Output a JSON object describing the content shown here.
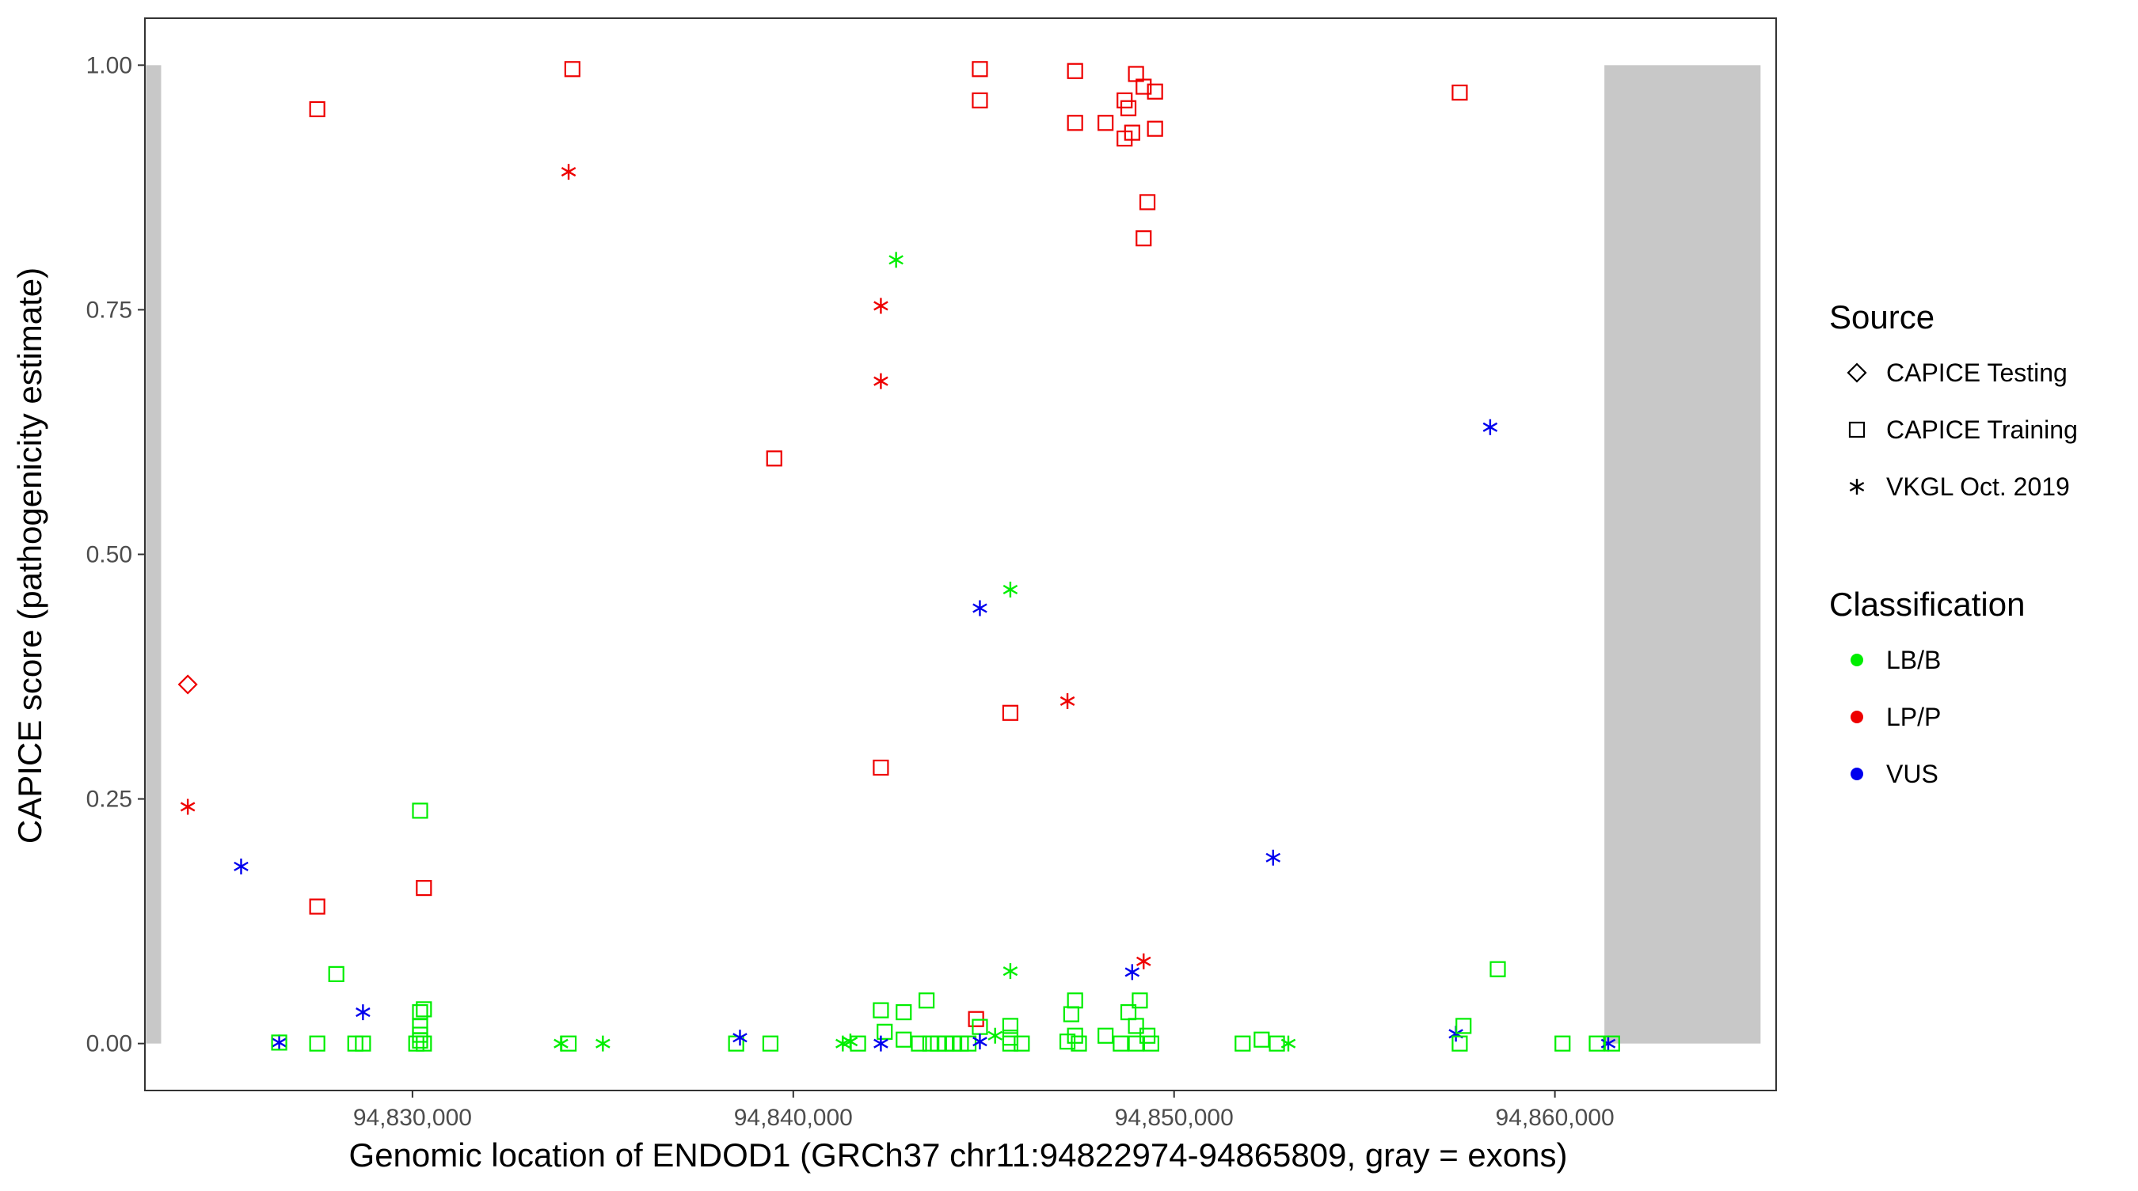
{
  "chart_data": {
    "type": "scatter",
    "xlabel": "Genomic location of ENDOD1 (GRCh37 chr11:94822974-94865809, gray = exons)",
    "ylabel": "CAPICE score (pathogenicity estimate)",
    "xlim": [
      94822974,
      94865809
    ],
    "ylim": [
      -0.048,
      1.048
    ],
    "x_ticks": [
      94830000,
      94840000,
      94850000,
      94860000
    ],
    "x_tick_labels": [
      "94,830,000",
      "94,840,000",
      "94,850,000",
      "94,860,000"
    ],
    "y_ticks": [
      0,
      0.25,
      0.5,
      0.75,
      1.0
    ],
    "y_tick_labels": [
      "0.00",
      "0.25",
      "0.50",
      "0.75",
      "1.00"
    ],
    "grid": false,
    "exons": [
      {
        "start": 94823000,
        "end": 94823400
      },
      {
        "start": 94861300,
        "end": 94865400
      }
    ],
    "exon_color": "#c8c8c8",
    "colors": {
      "LB/B": "#00ee00",
      "LP/P": "#ee0000",
      "VUS": "#0000ee"
    },
    "shapes": {
      "CAPICE Testing": "diamond",
      "CAPICE Training": "square",
      "VKGL Oct. 2019": "asterisk"
    },
    "legend": {
      "position": "right",
      "source_title": "Source",
      "source_items": [
        {
          "label": "CAPICE Testing",
          "shape": "diamond"
        },
        {
          "label": "CAPICE Training",
          "shape": "square"
        },
        {
          "label": "VKGL Oct. 2019",
          "shape": "asterisk"
        }
      ],
      "class_title": "Classification",
      "class_items": [
        {
          "label": "LB/B",
          "color": "#00ee00"
        },
        {
          "label": "LP/P",
          "color": "#ee0000"
        },
        {
          "label": "VUS",
          "color": "#0000ee"
        }
      ]
    },
    "points": [
      {
        "x": 94824100,
        "y": 0.367,
        "source": "CAPICE Testing",
        "cls": "LP/P"
      },
      {
        "x": 94824100,
        "y": 0.242,
        "source": "VKGL Oct. 2019",
        "cls": "LP/P"
      },
      {
        "x": 94825500,
        "y": 0.181,
        "source": "VKGL Oct. 2019",
        "cls": "VUS"
      },
      {
        "x": 94827500,
        "y": 0.955,
        "source": "CAPICE Training",
        "cls": "LP/P"
      },
      {
        "x": 94827500,
        "y": 0.14,
        "source": "CAPICE Training",
        "cls": "LP/P"
      },
      {
        "x": 94826500,
        "y": 0.001,
        "source": "VKGL Oct. 2019",
        "cls": "VUS"
      },
      {
        "x": 94826500,
        "y": 0.001,
        "source": "CAPICE Training",
        "cls": "LB/B"
      },
      {
        "x": 94827500,
        "y": 0.0,
        "source": "CAPICE Training",
        "cls": "LB/B"
      },
      {
        "x": 94828000,
        "y": 0.071,
        "source": "CAPICE Training",
        "cls": "LB/B"
      },
      {
        "x": 94828500,
        "y": 0.0,
        "source": "CAPICE Training",
        "cls": "LB/B"
      },
      {
        "x": 94828700,
        "y": 0.0,
        "source": "CAPICE Training",
        "cls": "LB/B"
      },
      {
        "x": 94828700,
        "y": 0.032,
        "source": "VKGL Oct. 2019",
        "cls": "VUS"
      },
      {
        "x": 94830200,
        "y": 0.238,
        "source": "CAPICE Training",
        "cls": "LB/B"
      },
      {
        "x": 94830300,
        "y": 0.159,
        "source": "CAPICE Training",
        "cls": "LP/P"
      },
      {
        "x": 94830300,
        "y": 0.035,
        "source": "CAPICE Training",
        "cls": "LB/B"
      },
      {
        "x": 94830200,
        "y": 0.032,
        "source": "CAPICE Training",
        "cls": "LB/B"
      },
      {
        "x": 94830200,
        "y": 0.018,
        "source": "CAPICE Training",
        "cls": "LB/B"
      },
      {
        "x": 94830200,
        "y": 0.009,
        "source": "CAPICE Training",
        "cls": "LB/B"
      },
      {
        "x": 94830200,
        "y": 0.003,
        "source": "CAPICE Training",
        "cls": "LB/B"
      },
      {
        "x": 94830100,
        "y": 0.0,
        "source": "CAPICE Training",
        "cls": "LB/B"
      },
      {
        "x": 94830300,
        "y": 0.0,
        "source": "CAPICE Training",
        "cls": "LB/B"
      },
      {
        "x": 94834100,
        "y": 0.891,
        "source": "VKGL Oct. 2019",
        "cls": "LP/P"
      },
      {
        "x": 94834200,
        "y": 0.996,
        "source": "CAPICE Training",
        "cls": "LP/P"
      },
      {
        "x": 94833900,
        "y": 0.0,
        "source": "VKGL Oct. 2019",
        "cls": "LB/B"
      },
      {
        "x": 94834100,
        "y": 0.0,
        "source": "CAPICE Training",
        "cls": "LB/B"
      },
      {
        "x": 94835000,
        "y": 0.0,
        "source": "VKGL Oct. 2019",
        "cls": "LB/B"
      },
      {
        "x": 94838500,
        "y": 0.0,
        "source": "CAPICE Training",
        "cls": "LB/B"
      },
      {
        "x": 94838600,
        "y": 0.006,
        "source": "VKGL Oct. 2019",
        "cls": "VUS"
      },
      {
        "x": 94839400,
        "y": 0.0,
        "source": "CAPICE Training",
        "cls": "LB/B"
      },
      {
        "x": 94839500,
        "y": 0.598,
        "source": "CAPICE Training",
        "cls": "LP/P"
      },
      {
        "x": 94841300,
        "y": 0.0,
        "source": "VKGL Oct. 2019",
        "cls": "LB/B"
      },
      {
        "x": 94841500,
        "y": 0.002,
        "source": "VKGL Oct. 2019",
        "cls": "LB/B"
      },
      {
        "x": 94841700,
        "y": 0.0,
        "source": "CAPICE Training",
        "cls": "LB/B"
      },
      {
        "x": 94842300,
        "y": 0.754,
        "source": "VKGL Oct. 2019",
        "cls": "LP/P"
      },
      {
        "x": 94842300,
        "y": 0.677,
        "source": "VKGL Oct. 2019",
        "cls": "LP/P"
      },
      {
        "x": 94842300,
        "y": 0.282,
        "source": "CAPICE Training",
        "cls": "LP/P"
      },
      {
        "x": 94842300,
        "y": 0.034,
        "source": "CAPICE Training",
        "cls": "LB/B"
      },
      {
        "x": 94842400,
        "y": 0.012,
        "source": "CAPICE Training",
        "cls": "LB/B"
      },
      {
        "x": 94842300,
        "y": 0.0,
        "source": "VKGL Oct. 2019",
        "cls": "VUS"
      },
      {
        "x": 94842700,
        "y": 0.801,
        "source": "VKGL Oct. 2019",
        "cls": "LB/B"
      },
      {
        "x": 94842900,
        "y": 0.032,
        "source": "CAPICE Training",
        "cls": "LB/B"
      },
      {
        "x": 94842900,
        "y": 0.004,
        "source": "CAPICE Training",
        "cls": "LB/B"
      },
      {
        "x": 94843300,
        "y": 0.0,
        "source": "CAPICE Training",
        "cls": "LB/B"
      },
      {
        "x": 94843500,
        "y": 0.044,
        "source": "CAPICE Training",
        "cls": "LB/B"
      },
      {
        "x": 94843600,
        "y": 0.0,
        "source": "CAPICE Training",
        "cls": "LB/B"
      },
      {
        "x": 94843800,
        "y": 0.0,
        "source": "CAPICE Training",
        "cls": "LB/B"
      },
      {
        "x": 94844000,
        "y": 0.0,
        "source": "CAPICE Training",
        "cls": "LB/B"
      },
      {
        "x": 94844200,
        "y": 0.0,
        "source": "CAPICE Training",
        "cls": "LB/B"
      },
      {
        "x": 94844400,
        "y": 0.0,
        "source": "CAPICE Training",
        "cls": "LB/B"
      },
      {
        "x": 94844600,
        "y": 0.0,
        "source": "CAPICE Training",
        "cls": "LB/B"
      },
      {
        "x": 94844800,
        "y": 0.025,
        "source": "CAPICE Training",
        "cls": "LP/P"
      },
      {
        "x": 94844900,
        "y": 0.996,
        "source": "CAPICE Training",
        "cls": "LP/P"
      },
      {
        "x": 94844900,
        "y": 0.964,
        "source": "CAPICE Training",
        "cls": "LP/P"
      },
      {
        "x": 94844900,
        "y": 0.445,
        "source": "VKGL Oct. 2019",
        "cls": "VUS"
      },
      {
        "x": 94844900,
        "y": 0.017,
        "source": "CAPICE Training",
        "cls": "LB/B"
      },
      {
        "x": 94844900,
        "y": 0.002,
        "source": "VKGL Oct. 2019",
        "cls": "VUS"
      },
      {
        "x": 94845300,
        "y": 0.008,
        "source": "VKGL Oct. 2019",
        "cls": "LB/B"
      },
      {
        "x": 94845700,
        "y": 0.464,
        "source": "VKGL Oct. 2019",
        "cls": "LB/B"
      },
      {
        "x": 94845700,
        "y": 0.338,
        "source": "CAPICE Training",
        "cls": "LP/P"
      },
      {
        "x": 94845700,
        "y": 0.074,
        "source": "VKGL Oct. 2019",
        "cls": "LB/B"
      },
      {
        "x": 94845700,
        "y": 0.018,
        "source": "CAPICE Training",
        "cls": "LB/B"
      },
      {
        "x": 94845700,
        "y": 0.006,
        "source": "CAPICE Training",
        "cls": "LB/B"
      },
      {
        "x": 94845700,
        "y": 0.0,
        "source": "CAPICE Training",
        "cls": "LB/B"
      },
      {
        "x": 94846000,
        "y": 0.0,
        "source": "CAPICE Training",
        "cls": "LB/B"
      },
      {
        "x": 94847200,
        "y": 0.35,
        "source": "VKGL Oct. 2019",
        "cls": "LP/P"
      },
      {
        "x": 94847400,
        "y": 0.994,
        "source": "CAPICE Training",
        "cls": "LP/P"
      },
      {
        "x": 94847400,
        "y": 0.941,
        "source": "CAPICE Training",
        "cls": "LP/P"
      },
      {
        "x": 94847400,
        "y": 0.044,
        "source": "CAPICE Training",
        "cls": "LB/B"
      },
      {
        "x": 94847300,
        "y": 0.03,
        "source": "CAPICE Training",
        "cls": "LB/B"
      },
      {
        "x": 94847400,
        "y": 0.008,
        "source": "CAPICE Training",
        "cls": "LB/B"
      },
      {
        "x": 94847200,
        "y": 0.002,
        "source": "CAPICE Training",
        "cls": "LB/B"
      },
      {
        "x": 94847500,
        "y": 0.0,
        "source": "CAPICE Training",
        "cls": "LB/B"
      },
      {
        "x": 94848200,
        "y": 0.941,
        "source": "CAPICE Training",
        "cls": "LP/P"
      },
      {
        "x": 94848200,
        "y": 0.008,
        "source": "CAPICE Training",
        "cls": "LB/B"
      },
      {
        "x": 94848700,
        "y": 0.964,
        "source": "CAPICE Training",
        "cls": "LP/P"
      },
      {
        "x": 94848700,
        "y": 0.925,
        "source": "CAPICE Training",
        "cls": "LP/P"
      },
      {
        "x": 94848800,
        "y": 0.956,
        "source": "CAPICE Training",
        "cls": "LP/P"
      },
      {
        "x": 94848900,
        "y": 0.931,
        "source": "CAPICE Training",
        "cls": "LP/P"
      },
      {
        "x": 94849000,
        "y": 0.991,
        "source": "CAPICE Training",
        "cls": "LP/P"
      },
      {
        "x": 94849200,
        "y": 0.978,
        "source": "CAPICE Training",
        "cls": "LP/P"
      },
      {
        "x": 94849500,
        "y": 0.973,
        "source": "CAPICE Training",
        "cls": "LP/P"
      },
      {
        "x": 94849500,
        "y": 0.935,
        "source": "CAPICE Training",
        "cls": "LP/P"
      },
      {
        "x": 94849300,
        "y": 0.86,
        "source": "CAPICE Training",
        "cls": "LP/P"
      },
      {
        "x": 94849200,
        "y": 0.823,
        "source": "CAPICE Training",
        "cls": "LP/P"
      },
      {
        "x": 94849200,
        "y": 0.084,
        "source": "VKGL Oct. 2019",
        "cls": "LP/P"
      },
      {
        "x": 94848900,
        "y": 0.073,
        "source": "VKGL Oct. 2019",
        "cls": "VUS"
      },
      {
        "x": 94849100,
        "y": 0.044,
        "source": "CAPICE Training",
        "cls": "LB/B"
      },
      {
        "x": 94848800,
        "y": 0.032,
        "source": "CAPICE Training",
        "cls": "LB/B"
      },
      {
        "x": 94849000,
        "y": 0.018,
        "source": "CAPICE Training",
        "cls": "LB/B"
      },
      {
        "x": 94849300,
        "y": 0.008,
        "source": "CAPICE Training",
        "cls": "LB/B"
      },
      {
        "x": 94848600,
        "y": 0.0,
        "source": "CAPICE Training",
        "cls": "LB/B"
      },
      {
        "x": 94849000,
        "y": 0.0,
        "source": "CAPICE Training",
        "cls": "LB/B"
      },
      {
        "x": 94849400,
        "y": 0.0,
        "source": "CAPICE Training",
        "cls": "LB/B"
      },
      {
        "x": 94852600,
        "y": 0.19,
        "source": "VKGL Oct. 2019",
        "cls": "VUS"
      },
      {
        "x": 94851800,
        "y": 0.0,
        "source": "CAPICE Training",
        "cls": "LB/B"
      },
      {
        "x": 94852300,
        "y": 0.004,
        "source": "CAPICE Training",
        "cls": "LB/B"
      },
      {
        "x": 94852700,
        "y": 0.0,
        "source": "CAPICE Training",
        "cls": "LB/B"
      },
      {
        "x": 94853000,
        "y": 0.0,
        "source": "VKGL Oct. 2019",
        "cls": "LB/B"
      },
      {
        "x": 94857500,
        "y": 0.972,
        "source": "CAPICE Training",
        "cls": "LP/P"
      },
      {
        "x": 94857400,
        "y": 0.01,
        "source": "VKGL Oct. 2019",
        "cls": "VUS"
      },
      {
        "x": 94857600,
        "y": 0.018,
        "source": "CAPICE Training",
        "cls": "LB/B"
      },
      {
        "x": 94857500,
        "y": 0.0,
        "source": "CAPICE Training",
        "cls": "LB/B"
      },
      {
        "x": 94858300,
        "y": 0.63,
        "source": "VKGL Oct. 2019",
        "cls": "VUS"
      },
      {
        "x": 94858500,
        "y": 0.076,
        "source": "CAPICE Training",
        "cls": "LB/B"
      },
      {
        "x": 94860200,
        "y": 0.0,
        "source": "CAPICE Training",
        "cls": "LB/B"
      },
      {
        "x": 94861100,
        "y": 0.0,
        "source": "CAPICE Training",
        "cls": "LB/B"
      },
      {
        "x": 94861400,
        "y": 0.0,
        "source": "VKGL Oct. 2019",
        "cls": "VUS"
      },
      {
        "x": 94861500,
        "y": 0.0,
        "source": "CAPICE Training",
        "cls": "LB/B"
      }
    ]
  }
}
